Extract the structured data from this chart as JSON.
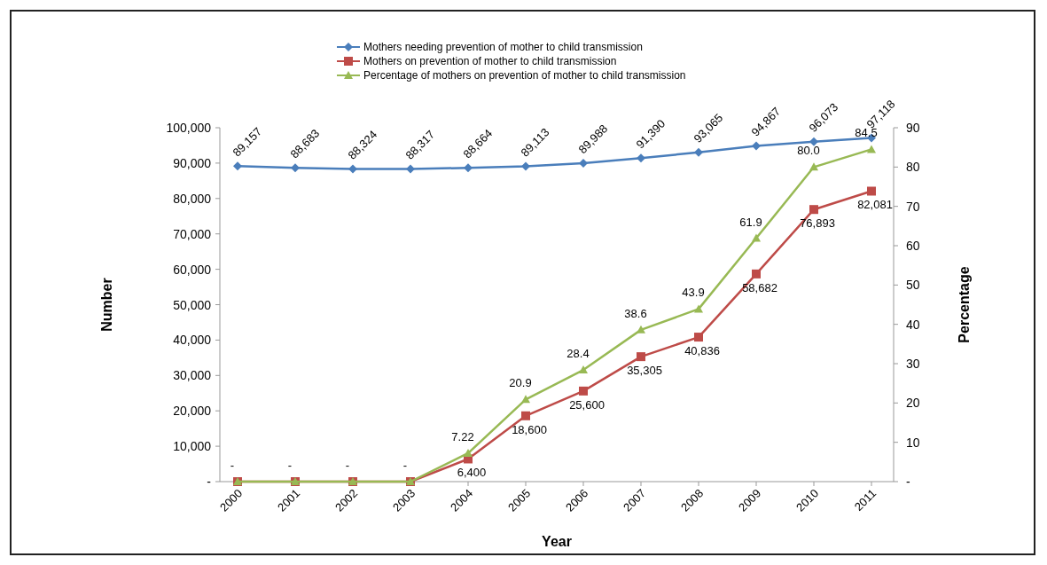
{
  "chart_data": {
    "type": "line",
    "xlabel": "Year",
    "ylabel": "Number",
    "y2label": "Percentage",
    "categories": [
      "2000",
      "2001",
      "2002",
      "2003",
      "2004",
      "2005",
      "2006",
      "2007",
      "2008",
      "2009",
      "2010",
      "2011"
    ],
    "series": [
      {
        "name": "Mothers needing prevention of mother to child transmission",
        "color": "#4a7ebb",
        "marker": "diamond",
        "values": [
          89157,
          88683,
          88324,
          88317,
          88664,
          89113,
          89988,
          91390,
          93065,
          94867,
          96073,
          97118
        ],
        "value_labels": [
          "89,157",
          "88,683",
          "88,324",
          "88,317",
          "88,664",
          "89,113",
          "89,988",
          "91,390",
          "93,065",
          "94,867",
          "96,073",
          "97,118"
        ]
      },
      {
        "name": "Mothers on prevention of mother to child transmission",
        "color": "#be4b48",
        "marker": "square",
        "values": [
          0,
          0,
          0,
          0,
          6400,
          18600,
          25600,
          35305,
          40836,
          58682,
          76893,
          82081
        ],
        "value_labels": [
          null,
          null,
          null,
          null,
          "6,400",
          "18,600",
          "25,600",
          "35,305",
          "40,836",
          "58,682",
          "76,893",
          "82,081"
        ]
      },
      {
        "name": "Percentage of mothers on prevention of mother to child transmission",
        "color": "#98b954",
        "marker": "triangle",
        "axis": "y2",
        "values": [
          0,
          0,
          0,
          0,
          7.22,
          20.9,
          28.4,
          38.6,
          43.9,
          61.9,
          80.0,
          84.5
        ],
        "value_labels": [
          "-",
          "-",
          "-",
          "-",
          "7.22",
          "20.9",
          "28.4",
          "38.6",
          "43.9",
          "61.9",
          "80.0",
          "84.5"
        ]
      }
    ],
    "ylim": [
      0,
      100000
    ],
    "yticks": [
      {
        "value": 0,
        "label": "-"
      },
      {
        "value": 10000,
        "label": "10,000"
      },
      {
        "value": 20000,
        "label": "20,000"
      },
      {
        "value": 30000,
        "label": "30,000"
      },
      {
        "value": 40000,
        "label": "40,000"
      },
      {
        "value": 50000,
        "label": "50,000"
      },
      {
        "value": 60000,
        "label": "60,000"
      },
      {
        "value": 70000,
        "label": "70,000"
      },
      {
        "value": 80000,
        "label": "80,000"
      },
      {
        "value": 90000,
        "label": "90,000"
      },
      {
        "value": 100000,
        "label": "100,000"
      }
    ],
    "y2lim": [
      0,
      90
    ],
    "y2ticks": [
      {
        "value": 0,
        "label": "-"
      },
      10,
      20,
      30,
      40,
      50,
      60,
      70,
      80,
      90
    ],
    "legend": "top",
    "grid": false,
    "line_style": "solid"
  }
}
